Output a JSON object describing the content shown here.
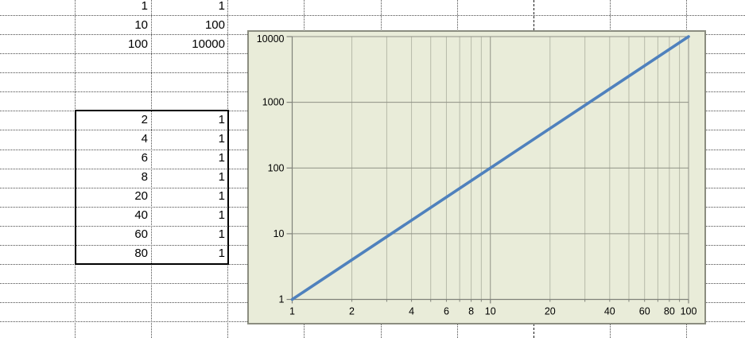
{
  "spreadsheet": {
    "top_rows": [
      [
        "1",
        "1"
      ],
      [
        "10",
        "100"
      ],
      [
        "100",
        "10000"
      ]
    ],
    "boxed_rows": [
      [
        "2",
        "1"
      ],
      [
        "4",
        "1"
      ],
      [
        "6",
        "1"
      ],
      [
        "8",
        "1"
      ],
      [
        "20",
        "1"
      ],
      [
        "40",
        "1"
      ],
      [
        "60",
        "1"
      ],
      [
        "80",
        "1"
      ]
    ]
  },
  "chart_data": {
    "type": "line",
    "title": "",
    "xlabel": "",
    "ylabel": "",
    "x_scale": "log",
    "y_scale": "log",
    "xlim": [
      1,
      100
    ],
    "ylim": [
      1,
      10000
    ],
    "x": [
      1,
      10,
      100
    ],
    "series": [
      {
        "name": "",
        "values": [
          1,
          100,
          10000
        ]
      }
    ],
    "x_tick_labels": [
      "1",
      "2",
      "4",
      "6",
      "8",
      "10",
      "20",
      "40",
      "60",
      "80",
      "100"
    ],
    "x_tick_values": [
      1,
      2,
      4,
      6,
      8,
      10,
      20,
      40,
      60,
      80,
      100
    ],
    "y_tick_labels": [
      "1",
      "10",
      "100",
      "1000",
      "10000"
    ],
    "y_tick_values": [
      1,
      10,
      100,
      1000,
      10000
    ],
    "x_minor_gridlines": [
      2,
      3,
      4,
      5,
      6,
      7,
      8,
      9,
      20,
      30,
      40,
      50,
      60,
      70,
      80,
      90
    ],
    "x_major_gridlines": [
      10,
      100
    ],
    "y_major_gridlines": [
      10,
      100,
      1000,
      10000
    ],
    "grid": "on",
    "legend": "none",
    "colors": {
      "background": "#e9ecd9",
      "border": "#8b8d80",
      "axis": "#80827a",
      "gridline_major": "#8f9186",
      "gridline_minor": "#b7baa9",
      "series_line": "#4f81bd",
      "tick_text": "#000000"
    }
  }
}
